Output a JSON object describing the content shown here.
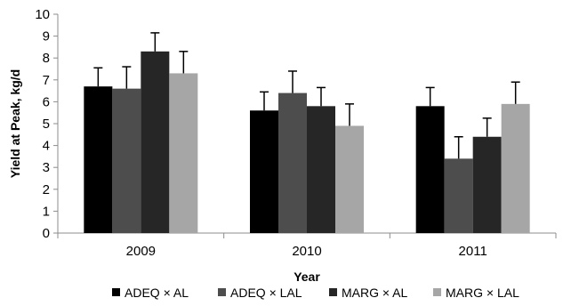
{
  "chart_data": {
    "type": "bar",
    "title": "",
    "xlabel": "Year",
    "ylabel": "Yield at Peak, kg/d",
    "categories": [
      "2009",
      "2010",
      "2011"
    ],
    "ylim": [
      0,
      10
    ],
    "yticks": [
      0,
      1,
      2,
      3,
      4,
      5,
      6,
      7,
      8,
      9,
      10
    ],
    "grid": false,
    "legend_position": "bottom",
    "series": [
      {
        "name": "ADEQ × AL",
        "color": "#000000",
        "values": [
          6.7,
          5.6,
          5.8
        ],
        "errors": [
          0.85,
          0.85,
          0.85
        ]
      },
      {
        "name": "ADEQ × LAL",
        "color": "#4d4d4d",
        "values": [
          6.6,
          6.4,
          3.4
        ],
        "errors": [
          1.0,
          1.0,
          1.0
        ]
      },
      {
        "name": "MARG × AL",
        "color": "#262626",
        "values": [
          8.3,
          5.8,
          4.4
        ],
        "errors": [
          0.85,
          0.85,
          0.85
        ]
      },
      {
        "name": "MARG × LAL",
        "color": "#a6a6a6",
        "values": [
          7.3,
          4.9,
          5.9
        ],
        "errors": [
          1.0,
          1.0,
          1.0
        ]
      }
    ]
  }
}
